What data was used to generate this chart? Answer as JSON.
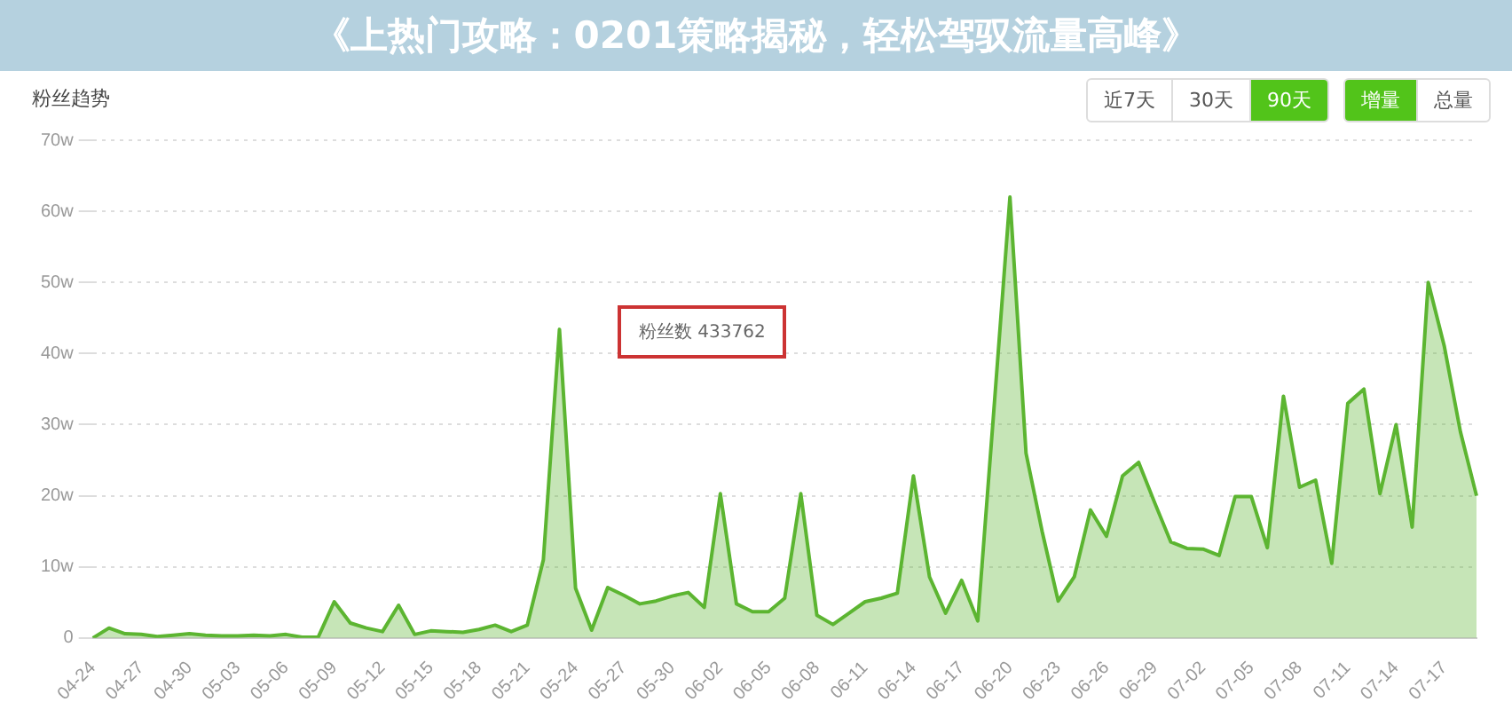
{
  "chart_data": {
    "type": "area",
    "title": "粉丝趋势",
    "annotations": [
      "《上热门攻略：0201策略揭秘，轻松驾驭流量高峰》",
      "近7天",
      "30天",
      "90天",
      "增量",
      "总量",
      "粉丝数 433762"
    ],
    "categories": [
      "04-24",
      null,
      null,
      "04-27",
      null,
      null,
      "04-30",
      null,
      null,
      "05-03",
      null,
      null,
      "05-06",
      null,
      null,
      "05-09",
      null,
      null,
      "05-12",
      null,
      null,
      "05-15",
      null,
      null,
      "05-18",
      null,
      null,
      "05-21",
      null,
      null,
      "05-24",
      null,
      null,
      "05-27",
      null,
      null,
      "05-30",
      null,
      null,
      "06-02",
      null,
      null,
      "06-05",
      null,
      null,
      "06-08",
      null,
      null,
      "06-11",
      null,
      null,
      "06-14",
      null,
      null,
      "06-17",
      null,
      null,
      "06-20",
      null,
      null,
      "06-23",
      null,
      null,
      "06-26",
      null,
      null,
      "06-29",
      null,
      null,
      "07-02",
      null,
      null,
      "07-05",
      null,
      null,
      "07-08",
      null,
      null,
      "07-11",
      null,
      null,
      "07-14",
      null,
      null,
      "07-17",
      null,
      null
    ],
    "series": [
      {
        "color": "#5cb531",
        "values": [
          0,
          1.4,
          0.6,
          0.5,
          0.2,
          0.4,
          0.6,
          0.4,
          0.3,
          0.3,
          0.4,
          0.3,
          0.5,
          0.1,
          0.1,
          5.1,
          2.1,
          1.4,
          0.9,
          4.6,
          0.5,
          1,
          0.9,
          0.8,
          1.2,
          1.8,
          0.9,
          1.8,
          11,
          43.4,
          7,
          1.1,
          7.1,
          6,
          4.8,
          5.2,
          5.9,
          6.4,
          4.3,
          20.3,
          4.8,
          3.7,
          3.7,
          5.6,
          20.3,
          3.2,
          1.9,
          3.5,
          5.1,
          5.6,
          6.3,
          22.8,
          8.6,
          3.5,
          8.1,
          2.4,
          32,
          62,
          26,
          15,
          5.2,
          8.6,
          18,
          14.3,
          22.8,
          24.7,
          19,
          13.5,
          12.6,
          12.5,
          11.6,
          19.9,
          19.9,
          12.7,
          34,
          21.2,
          22.2,
          10.5,
          33,
          35,
          20.3,
          30,
          15.6,
          50,
          41,
          29,
          20
        ]
      }
    ],
    "ylim": [
      0,
      70
    ],
    "yticks": [
      0,
      {
        "value": 10,
        "label": "10w"
      },
      {
        "value": 20,
        "label": "20w"
      },
      {
        "value": 30,
        "label": "30w"
      },
      {
        "value": 40,
        "label": "40w"
      },
      {
        "value": 50,
        "label": "50w"
      },
      {
        "value": 60,
        "label": "60w"
      },
      {
        "value": 70,
        "label": "70w"
      }
    ],
    "grid": "y",
    "legend": false,
    "marker": "none",
    "line_style": "solid"
  }
}
